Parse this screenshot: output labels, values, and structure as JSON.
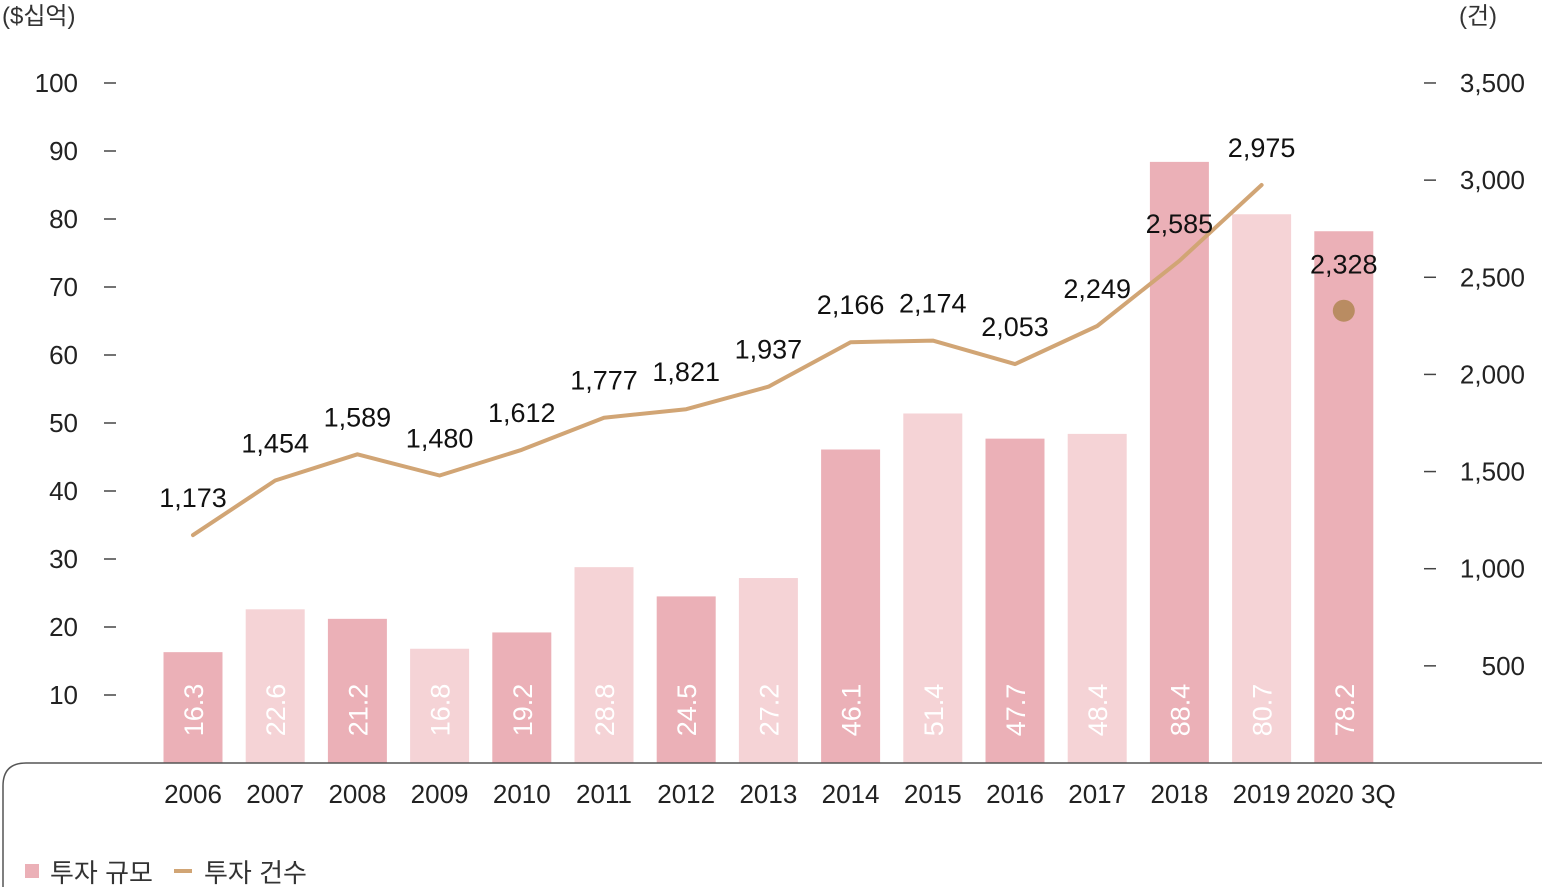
{
  "chart_data": {
    "type": "bar",
    "title": "",
    "left_axis": {
      "unit": "($십억)",
      "ticks": [
        10,
        20,
        30,
        40,
        50,
        60,
        70,
        80,
        90,
        100
      ],
      "ylim": [
        0,
        100
      ]
    },
    "right_axis": {
      "unit": "(건)",
      "ticks": [
        "500",
        "1,000",
        "1,500",
        "2,000",
        "2,500",
        "3,000",
        "3,500"
      ],
      "ylim": [
        0,
        3500
      ]
    },
    "categories": [
      "2006",
      "2007",
      "2008",
      "2009",
      "2010",
      "2011",
      "2012",
      "2013",
      "2014",
      "2015",
      "2016",
      "2017",
      "2018",
      "2019",
      "2020 3Q"
    ],
    "series": [
      {
        "name": "투자 규모",
        "kind": "bar",
        "axis": "left",
        "values": [
          16.3,
          22.6,
          21.2,
          16.8,
          19.2,
          28.8,
          24.5,
          27.2,
          46.1,
          51.4,
          47.7,
          48.4,
          88.4,
          80.7,
          78.2
        ],
        "labels": [
          "16.3",
          "22.6",
          "21.2",
          "16.8",
          "19.2",
          "28.8",
          "24.5",
          "27.2",
          "46.1",
          "51.4",
          "47.7",
          "48.4",
          "88.4",
          "80.7",
          "78.2"
        ]
      },
      {
        "name": "투자 건수",
        "kind": "line",
        "axis": "right",
        "values": [
          1173,
          1454,
          1589,
          1480,
          1612,
          1777,
          1821,
          1937,
          2166,
          2174,
          2053,
          2249,
          2585,
          2975,
          2328
        ],
        "labels": [
          "1,173",
          "1,454",
          "1,589",
          "1,480",
          "1,612",
          "1,777",
          "1,821",
          "1,937",
          "2,166",
          "2,174",
          "2,053",
          "2,249",
          "2,585",
          "2,975",
          "2,328"
        ],
        "note": "line connects 2006–2019; 2020 3Q shown as a separate dot"
      }
    ],
    "colors": {
      "bar_dark": "#ebb0b7",
      "bar_light": "#f5d3d6",
      "line": "#d1a575",
      "dot": "#b98c62"
    },
    "legend": {
      "placement": "bottom-left"
    }
  }
}
